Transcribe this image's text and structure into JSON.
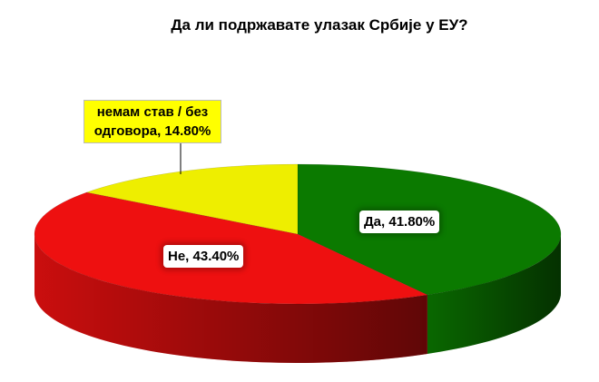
{
  "chart_data": {
    "type": "pie3d",
    "title": "Да ли подржавате улазак Србије у ЕУ?",
    "values": [
      41.8,
      43.4,
      14.8
    ],
    "value_labels": [
      "Да, 41.80%",
      "Не, 43.40%",
      "немам став / без одговора, 14.80%"
    ],
    "colors": [
      "#0b7a00",
      "#ee1010",
      "#eeee00"
    ]
  }
}
